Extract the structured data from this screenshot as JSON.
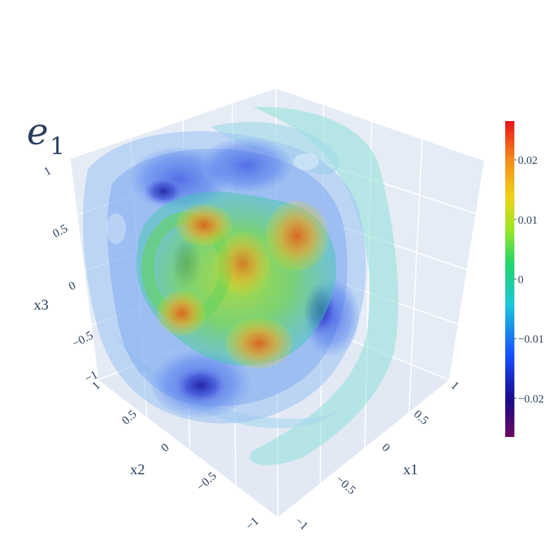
{
  "chart_data": {
    "type": "volume-isosurface-3d",
    "title": "e",
    "title_subscript": "1",
    "axes": {
      "x1": {
        "label": "x1",
        "range": [
          -1,
          1
        ],
        "ticks": [
          "−1",
          "−0.5",
          "0",
          "0.5",
          "1"
        ]
      },
      "x2": {
        "label": "x2",
        "range": [
          -1,
          1
        ],
        "ticks": [
          "−1",
          "−0.5",
          "0",
          "0.5",
          "1"
        ]
      },
      "x3": {
        "label": "x3",
        "range": [
          -1,
          1
        ],
        "ticks": [
          "−1",
          "−0.5",
          "0",
          "0.5",
          "1"
        ]
      }
    },
    "colorbar": {
      "colorscale": "rainbow",
      "range": [
        -0.0265,
        0.0265
      ],
      "ticks": [
        {
          "value": 0.02,
          "label": "0.02"
        },
        {
          "value": 0.01,
          "label": "0.01"
        },
        {
          "value": 0,
          "label": "0"
        },
        {
          "value": -0.01,
          "label": "−0.01"
        },
        {
          "value": -0.02,
          "label": "−0.02"
        }
      ],
      "colors": [
        "#6a0a5e",
        "#1a0a8f",
        "#1750ff",
        "#1ac8d8",
        "#22d66a",
        "#9ce623",
        "#f0d21a",
        "#f58a1a",
        "#e8101a"
      ]
    },
    "features": {
      "positive_lobes": 5,
      "negative_lobes": 3
    },
    "background": "#e5ecf6",
    "grid": true
  }
}
